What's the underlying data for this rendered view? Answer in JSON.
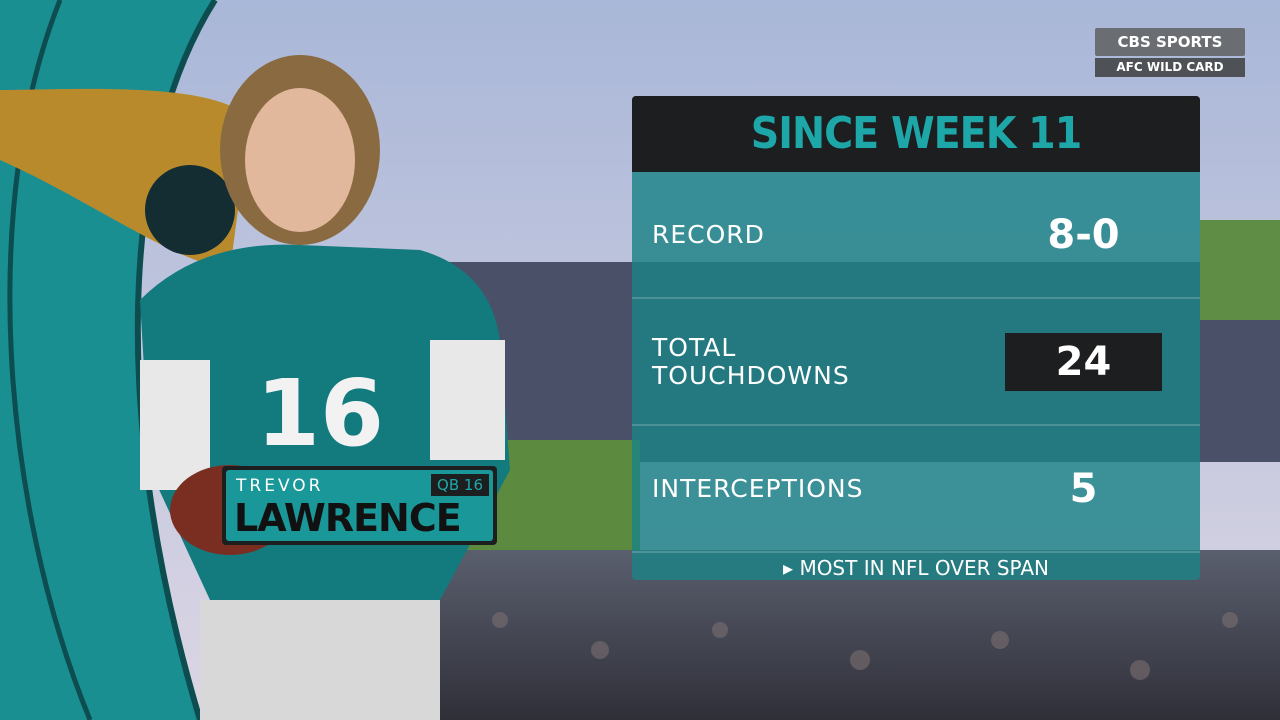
{
  "network": {
    "logo": "CBS SPORTS",
    "event": "AFC WILD CARD"
  },
  "player": {
    "first_name": "TREVOR",
    "last_name": "LAWRENCE",
    "position_number": "QB 16",
    "jersey_number": "16"
  },
  "stats_panel": {
    "title": "SINCE WEEK 11",
    "rows": [
      {
        "label": [
          "RECORD"
        ],
        "value": "8-0",
        "highlight": false
      },
      {
        "label": [
          "TOTAL",
          "TOUCHDOWNS"
        ],
        "value": 24,
        "highlight": true
      },
      {
        "label": [
          "INTERCEPTIONS"
        ],
        "value": 5,
        "highlight": false
      }
    ],
    "footnote": "MOST IN NFL OVER SPAN"
  }
}
